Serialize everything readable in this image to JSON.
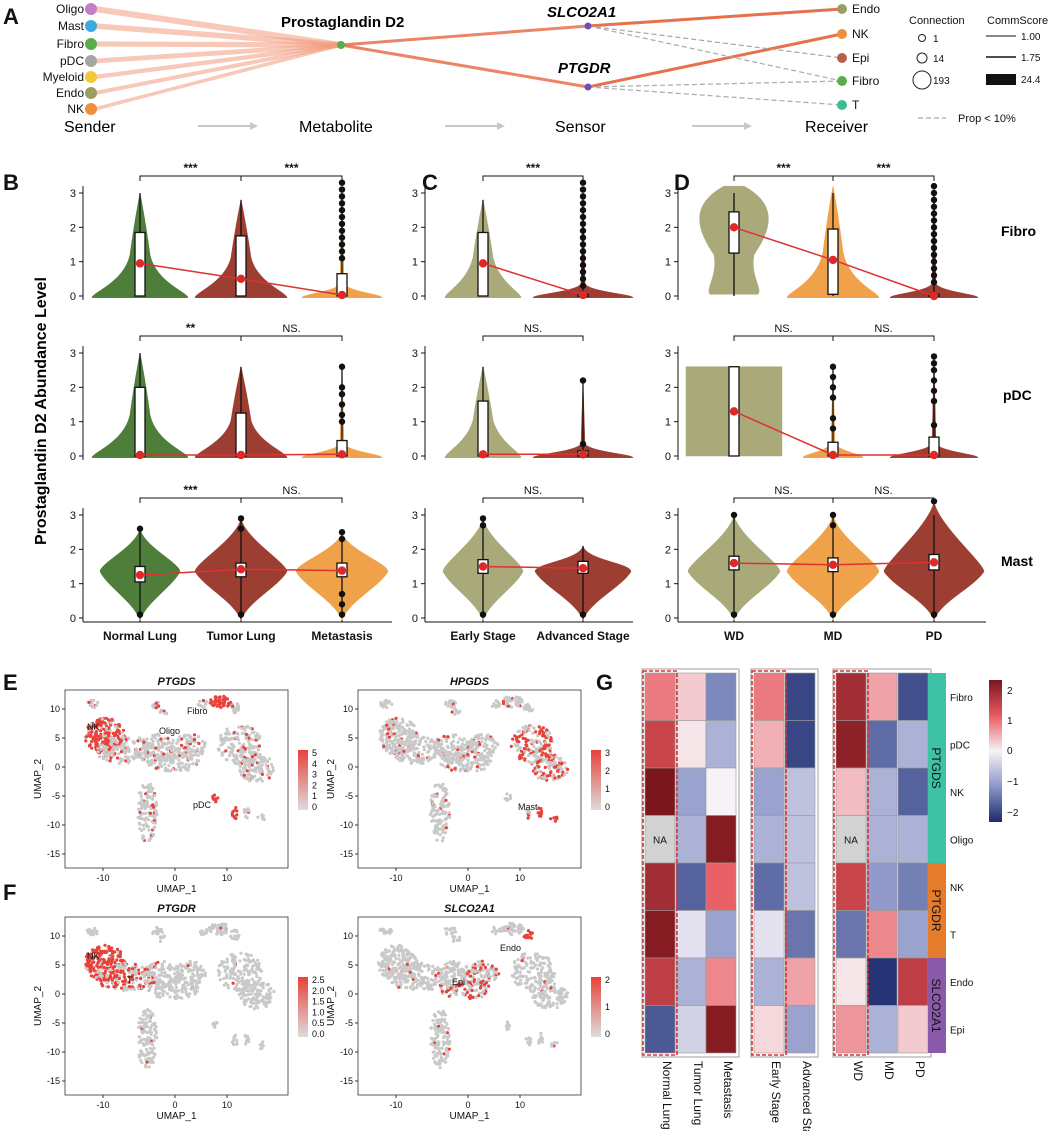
{
  "panels": {
    "A": "A",
    "B": "B",
    "C": "C",
    "D": "D",
    "E": "E",
    "F": "F",
    "G": "G"
  },
  "flow": {
    "senders": [
      "Oligo",
      "Mast",
      "Fibro",
      "pDC",
      "Myeloid",
      "Endo",
      "NK"
    ],
    "sender_colors": [
      "#c77cc8",
      "#3fa9df",
      "#5aae4a",
      "#a6a6a6",
      "#f2c93b",
      "#9c9d63",
      "#ef8e3b"
    ],
    "metabolite": "Prostaglandin D2",
    "sensors": [
      "SLCO2A1",
      "PTGDR"
    ],
    "receivers": [
      "Endo",
      "NK",
      "Epi",
      "Fibro",
      "T"
    ],
    "receiver_colors": [
      "#9c9d63",
      "#ef8e3b",
      "#b5614a",
      "#5aae4a",
      "#3ebd8c"
    ],
    "stages": [
      "Sender",
      "Metabolite",
      "Sensor",
      "Receiver"
    ],
    "legend_connection_title": "Connection",
    "legend_connection": [
      "1",
      "14",
      "193"
    ],
    "legend_score_title": "CommScore",
    "legend_score": [
      "1.00",
      "1.75",
      "24.4"
    ],
    "legend_dash": "Prop < 10%"
  },
  "violin": {
    "ylabel": "Prostaglandin D2 Abundance Level",
    "yticks": [
      "0",
      "1",
      "2",
      "3"
    ],
    "rows": [
      "Fibro",
      "pDC",
      "Mast"
    ],
    "groupsB": [
      "Normal Lung",
      "Tumor Lung",
      "Metastasis"
    ],
    "groupsC": [
      "Early Stage",
      "Advanced Stage"
    ],
    "groupsD": [
      "WD",
      "MD",
      "PD"
    ],
    "colors": {
      "green": "#4f7d3a",
      "brown": "#9c3f32",
      "orange": "#f0a24a",
      "olive": "#a9a97a"
    },
    "sig": {
      "B": [
        [
          "***",
          "***"
        ],
        [
          "**",
          "NS."
        ],
        [
          "***",
          "NS."
        ]
      ],
      "C": [
        "***",
        "NS.",
        "NS."
      ],
      "D": [
        [
          "***",
          "***"
        ],
        [
          "NS.",
          "NS."
        ],
        [
          "NS.",
          "NS."
        ]
      ]
    },
    "means": {
      "B": [
        [
          0.95,
          0.5,
          0.03
        ],
        [
          0.03,
          0.03,
          0.05
        ],
        [
          1.25,
          1.42,
          1.38
        ]
      ],
      "C": [
        [
          0.95,
          0.03
        ],
        [
          0.05,
          0.05
        ],
        [
          1.5,
          1.45
        ]
      ],
      "D": [
        [
          2.0,
          1.05,
          0.0
        ],
        [
          1.3,
          0.03,
          0.03
        ],
        [
          1.6,
          1.55,
          1.62
        ]
      ]
    }
  },
  "umap": {
    "titles": [
      "PTGDS",
      "HPGDS",
      "PTGDR",
      "SLCO2A1"
    ],
    "xlabel": "UMAP_1",
    "ylabel": "UMAP_2",
    "xticks": [
      "-10",
      "0",
      "10"
    ],
    "yticks": [
      "10",
      "5",
      "0",
      "-5",
      "-10",
      "-15"
    ],
    "annotations": {
      "PTGDS": [
        "NK",
        "Oligo",
        "Fibro",
        "pDC"
      ],
      "HPGDS": [
        "Mast"
      ],
      "PTGDR": [
        "NK",
        "T"
      ],
      "SLCO2A1": [
        "Endo",
        "Epi"
      ]
    },
    "scale_PTGDS": [
      "5",
      "4",
      "3",
      "2",
      "1",
      "0"
    ],
    "scale_HPGDS": [
      "3",
      "2",
      "1",
      "0"
    ],
    "scale_PTGDR": [
      "2.5",
      "2.0",
      "1.5",
      "1.0",
      "0.5",
      "0.0"
    ],
    "scale_SLCO2A1": [
      "2",
      "1",
      "0"
    ]
  },
  "heatmap": {
    "columns": [
      "Normal Lung",
      "Tumor Lung",
      "Metastasis",
      "Early Stage",
      "Advanced Stage",
      "WD",
      "MD",
      "PD"
    ],
    "rows": [
      "Fibro",
      "pDC",
      "NK",
      "Oligo",
      "NK",
      "T",
      "Endo",
      "Epi"
    ],
    "row_label_colors": [
      "#e03a3a",
      "#e03a3a",
      "#e03a3a",
      "#111111",
      "#e03a3a",
      "#e03a3a",
      "#e03a3a",
      "#111111"
    ],
    "gene_groups": [
      "PTGDS",
      "PTGDR",
      "SLCO2A1"
    ],
    "gene_group_colors": [
      "#3ec1a5",
      "#e57c2c",
      "#8a5aa8"
    ],
    "na_label": "NA",
    "values": [
      [
        0.9,
        0.3,
        -1.3,
        0.9,
        -2.0,
        1.9,
        0.6,
        -1.9
      ],
      [
        1.5,
        0.1,
        -0.8,
        0.5,
        -2.0,
        2.1,
        -1.6,
        -0.8
      ],
      [
        2.3,
        -1.0,
        0.0,
        -1.0,
        -0.6,
        0.4,
        -0.8,
        -1.7
      ],
      [
        null,
        -0.8,
        2.2,
        -0.8,
        -0.6,
        null,
        -0.8,
        -0.8
      ],
      [
        1.9,
        -1.7,
        1.1,
        -1.6,
        -0.6,
        1.5,
        -1.1,
        -1.4
      ],
      [
        2.2,
        -0.2,
        -1.0,
        -0.2,
        -1.5,
        -1.5,
        0.8,
        -1.0
      ],
      [
        1.6,
        -0.8,
        0.8,
        -0.8,
        0.6,
        0.1,
        -2.2,
        1.6
      ],
      [
        -1.8,
        -0.4,
        2.2,
        0.2,
        -1.0,
        0.7,
        -0.8,
        0.3
      ]
    ],
    "scale_ticks": [
      "2",
      "1",
      "0",
      "−1",
      "−2"
    ]
  }
}
